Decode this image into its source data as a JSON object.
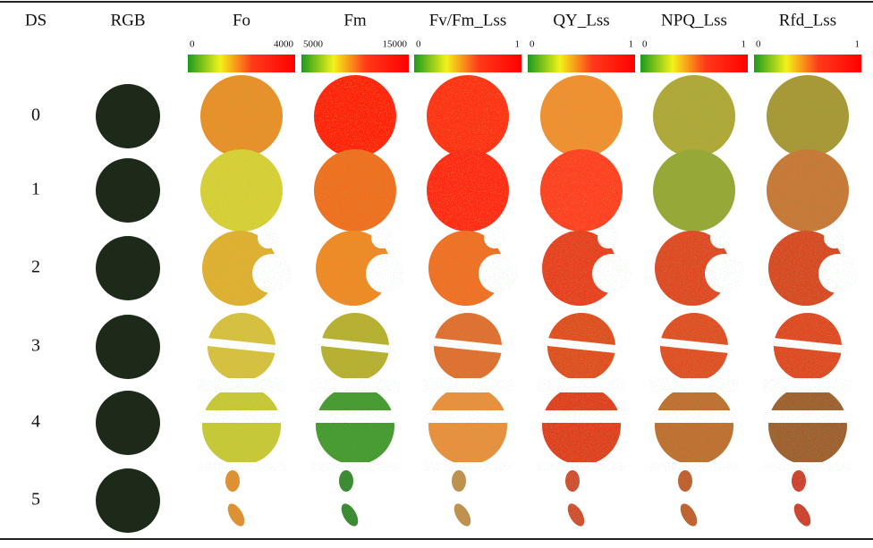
{
  "header": {
    "columns": [
      "DS",
      "RGB",
      "Fo",
      "Fm",
      "Fv/Fm_Lss",
      "QY_Lss",
      "NPQ_Lss",
      "Rfd_Lss"
    ]
  },
  "color_scales": [
    {
      "min": 0,
      "max": 4000
    },
    {
      "min": 5000,
      "max": 15000
    },
    {
      "min": 0,
      "max": 1
    },
    {
      "min": 0,
      "max": 1
    },
    {
      "min": 0,
      "max": 1
    },
    {
      "min": 0,
      "max": 1
    }
  ],
  "rows": [
    0,
    1,
    2,
    3,
    4,
    5
  ]
}
